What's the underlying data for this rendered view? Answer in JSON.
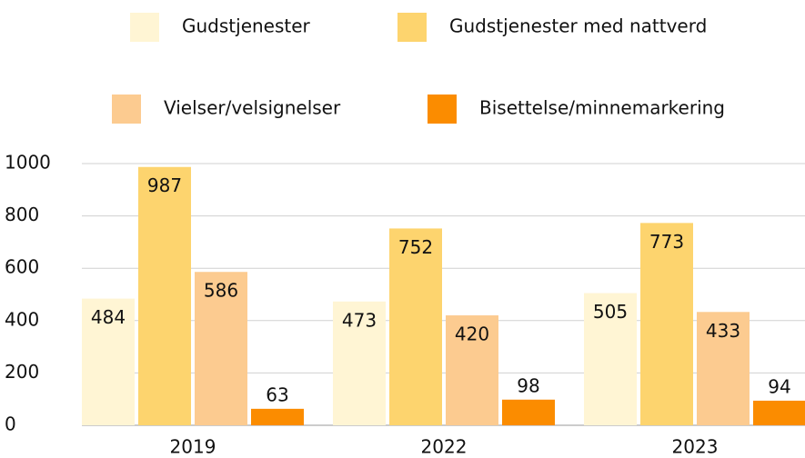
{
  "chart_data": {
    "type": "bar",
    "categories": [
      "2019",
      "2022",
      "2023"
    ],
    "series": [
      {
        "name": "Gudstjenester",
        "color": "#fff5d4",
        "values": [
          484,
          473,
          505
        ]
      },
      {
        "name": "Gudstjenester med nattverd",
        "color": "#fdd46e",
        "values": [
          987,
          752,
          773
        ]
      },
      {
        "name": "Vielser/velsignelser",
        "color": "#fccb90",
        "values": [
          586,
          420,
          433
        ]
      },
      {
        "name": "Bisettelse/minnemarkering",
        "color": "#fb8c00",
        "values": [
          63,
          98,
          94
        ]
      }
    ],
    "ylim": [
      0,
      1000
    ],
    "yticks": [
      0,
      200,
      400,
      600,
      800,
      1000
    ],
    "grid": true
  }
}
